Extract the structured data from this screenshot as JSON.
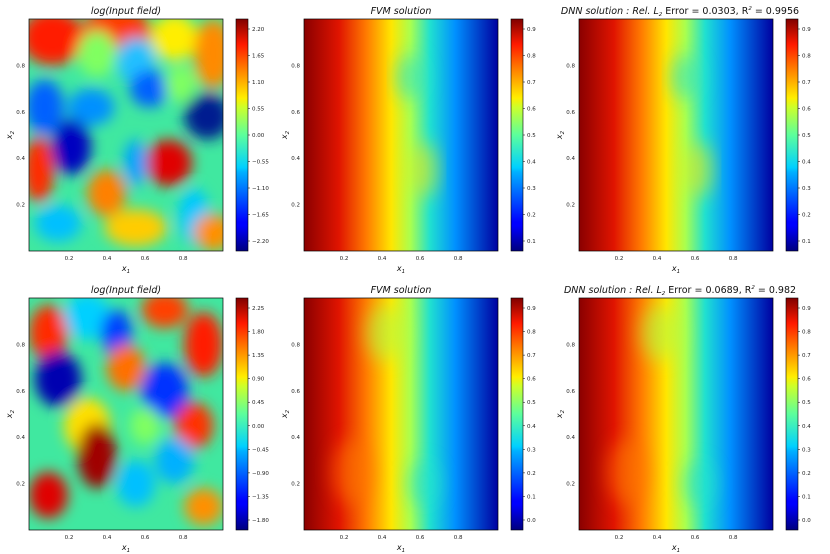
{
  "figure": {
    "panels": [
      {
        "row": 0,
        "col": 0,
        "kind": "input",
        "title": "log(Input field)",
        "cbar_ticks": [
          "2.20",
          "1.65",
          "1.10",
          "0.55",
          "0.00",
          "−0.55",
          "−1.10",
          "−1.65",
          "−2.20"
        ]
      },
      {
        "row": 0,
        "col": 1,
        "kind": "fvm",
        "title": "FVM solution",
        "cbar_ticks": [
          "0.9",
          "0.8",
          "0.7",
          "0.6",
          "0.5",
          "0.4",
          "0.3",
          "0.2",
          "0.1"
        ]
      },
      {
        "row": 0,
        "col": 2,
        "kind": "dnn",
        "title_prefix": "DNN solution :  Rel. L",
        "title_sub": "2",
        "title_mid": " Error = 0.0303, R",
        "title_sup": "2",
        "title_suffix": " = 0.9956",
        "cbar_ticks": [
          "0.9",
          "0.8",
          "0.7",
          "0.6",
          "0.5",
          "0.4",
          "0.3",
          "0.2",
          "0.1"
        ]
      },
      {
        "row": 1,
        "col": 0,
        "kind": "input",
        "title": "log(Input field)",
        "cbar_ticks": [
          "2.25",
          "1.80",
          "1.35",
          "0.90",
          "0.45",
          "0.00",
          "−0.45",
          "−0.90",
          "−1.35",
          "−1.80"
        ]
      },
      {
        "row": 1,
        "col": 1,
        "kind": "fvm",
        "title": "FVM solution",
        "cbar_ticks": [
          "0.9",
          "0.8",
          "0.7",
          "0.6",
          "0.5",
          "0.4",
          "0.3",
          "0.2",
          "0.1",
          "0.0"
        ]
      },
      {
        "row": 1,
        "col": 2,
        "kind": "dnn",
        "title_prefix": "DNN solution :  Rel. L",
        "title_sub": "2",
        "title_mid": " Error = 0.0689, R",
        "title_sup": "2",
        "title_suffix": " = 0.982",
        "cbar_ticks": [
          "0.9",
          "0.8",
          "0.7",
          "0.6",
          "0.5",
          "0.4",
          "0.3",
          "0.2",
          "0.1",
          "0.0"
        ]
      }
    ],
    "x_ticks": [
      "0.2",
      "0.4",
      "0.6",
      "0.8"
    ],
    "y_ticks": [
      "0.8",
      "0.6",
      "0.4",
      "0.2"
    ],
    "xlabel": "x",
    "xlabel_sub": "1",
    "ylabel": "x",
    "ylabel_sub": "2",
    "colormap": "jet"
  },
  "chart_data": [
    {
      "type": "heatmap",
      "title": "log(Input field)",
      "xlabel": "x1",
      "ylabel": "x2",
      "xlim": [
        0,
        1
      ],
      "ylim": [
        0,
        1
      ],
      "colorbar_range": [
        -2.2,
        2.2
      ],
      "colormap": "jet"
    },
    {
      "type": "heatmap",
      "title": "FVM solution",
      "xlabel": "x1",
      "ylabel": "x2",
      "xlim": [
        0,
        1
      ],
      "ylim": [
        0,
        1
      ],
      "colorbar_range": [
        0.0,
        1.0
      ],
      "colormap": "jet"
    },
    {
      "type": "heatmap",
      "title": "DNN solution : Rel. L2 Error = 0.0303, R2 = 0.9956",
      "xlabel": "x1",
      "ylabel": "x2",
      "xlim": [
        0,
        1
      ],
      "ylim": [
        0,
        1
      ],
      "colorbar_range": [
        0.0,
        1.0
      ],
      "colormap": "jet",
      "rel_l2_error": 0.0303,
      "r2": 0.9956
    },
    {
      "type": "heatmap",
      "title": "log(Input field)",
      "xlabel": "x1",
      "ylabel": "x2",
      "xlim": [
        0,
        1
      ],
      "ylim": [
        0,
        1
      ],
      "colorbar_range": [
        -1.8,
        2.25
      ],
      "colormap": "jet"
    },
    {
      "type": "heatmap",
      "title": "FVM solution",
      "xlabel": "x1",
      "ylabel": "x2",
      "xlim": [
        0,
        1
      ],
      "ylim": [
        0,
        1
      ],
      "colorbar_range": [
        0.0,
        1.0
      ],
      "colormap": "jet"
    },
    {
      "type": "heatmap",
      "title": "DNN solution : Rel. L2 Error = 0.0689, R2 = 0.982",
      "xlabel": "x1",
      "ylabel": "x2",
      "xlim": [
        0,
        1
      ],
      "ylim": [
        0,
        1
      ],
      "colorbar_range": [
        0.0,
        1.0
      ],
      "colormap": "jet",
      "rel_l2_error": 0.0689,
      "r2": 0.982
    }
  ]
}
